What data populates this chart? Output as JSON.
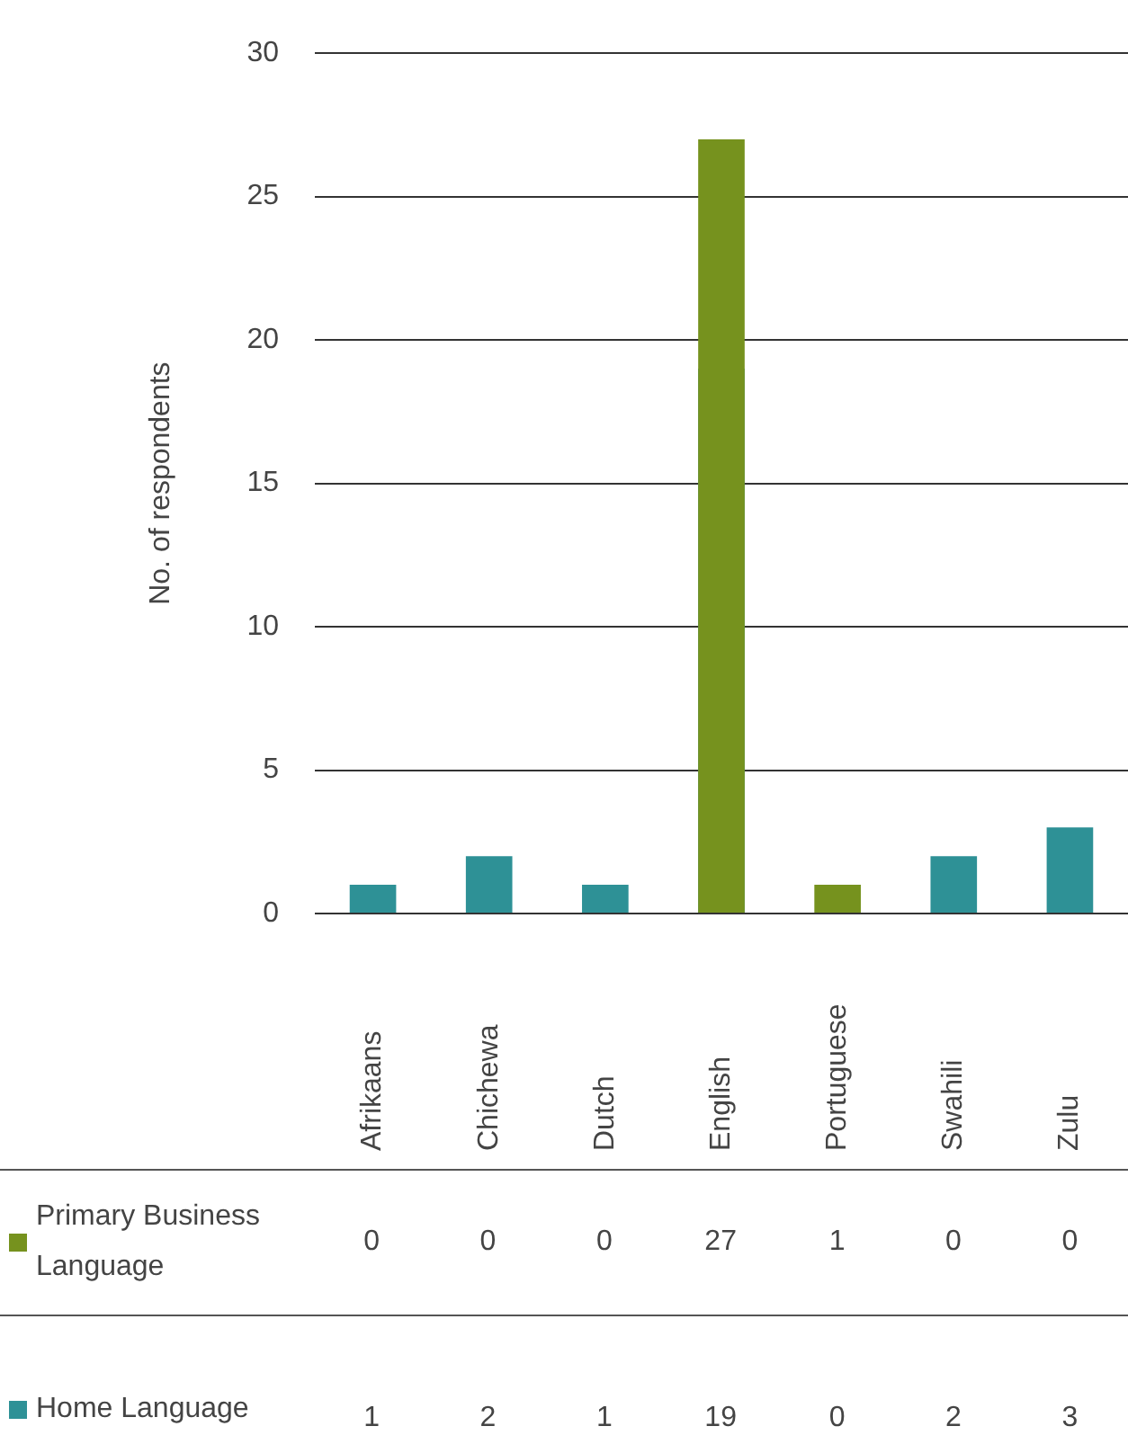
{
  "chart_data": {
    "type": "bar",
    "ylabel": "No. of respondents",
    "categories": [
      "Afrikaans",
      "Chichewa",
      "Dutch",
      "English",
      "Portuguese",
      "Swahili",
      "Zulu"
    ],
    "series": [
      {
        "name": "Primary Business Language",
        "color": "#76921e",
        "values": [
          0,
          0,
          0,
          27,
          1,
          0,
          0
        ]
      },
      {
        "name": "Home Language",
        "color": "#2e9196",
        "values": [
          1,
          2,
          1,
          19,
          0,
          2,
          3
        ]
      }
    ],
    "ylim": [
      0,
      30
    ],
    "yticks": [
      0,
      5,
      10,
      15,
      20,
      25,
      30
    ],
    "grid": "y",
    "data_labels": true,
    "legend": "bottom left"
  }
}
